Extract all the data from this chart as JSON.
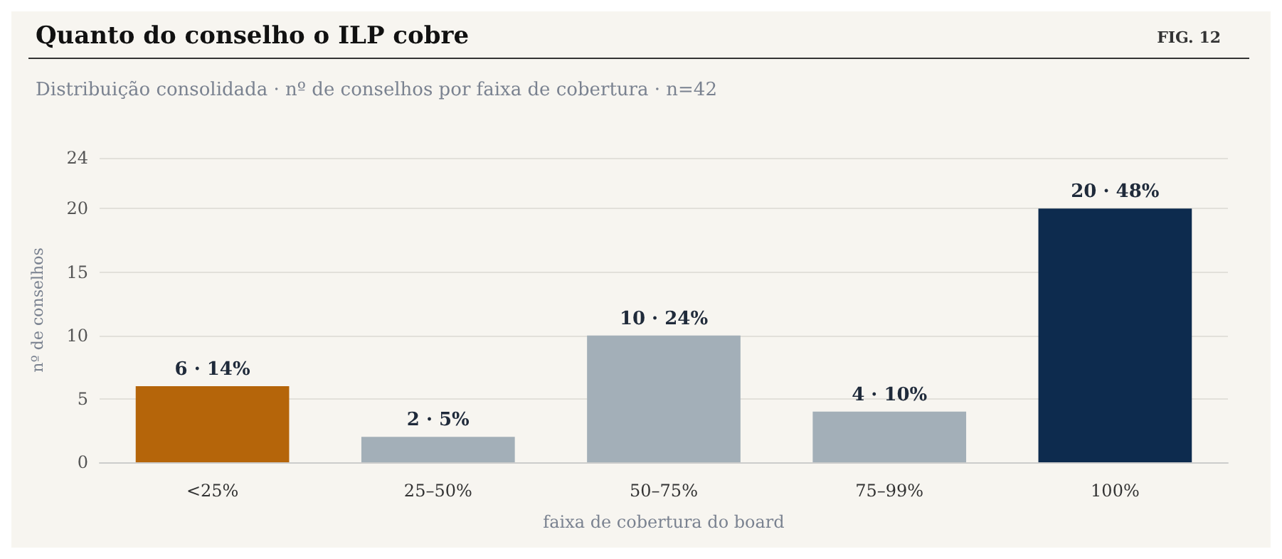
{
  "chart_data": {
    "type": "bar",
    "title": "Quanto do conselho o ILP cobre",
    "subtitle": "Distribuição consolidada · nº de conselhos por faixa de cobertura · n=42",
    "annotations": [
      "FIG. 12"
    ],
    "xlabel": "faixa de cobertura do board",
    "ylabel": "nº de conselhos",
    "categories": [
      "<25%",
      "25–50%",
      "50–75%",
      "75–99%",
      "100%"
    ],
    "values": [
      6,
      2,
      10,
      4,
      20
    ],
    "colors": [
      "#b5650a",
      "#a3afb8",
      "#a3afb8",
      "#a3afb8",
      "#0d2b4e"
    ],
    "value_labels": [
      "6 · 14%",
      "2 · 5%",
      "10 · 24%",
      "4 · 10%",
      "20 · 48%"
    ],
    "ylim": [
      0,
      24
    ],
    "yticks": [
      0,
      5,
      10,
      15,
      20,
      24
    ],
    "grid": "y"
  }
}
